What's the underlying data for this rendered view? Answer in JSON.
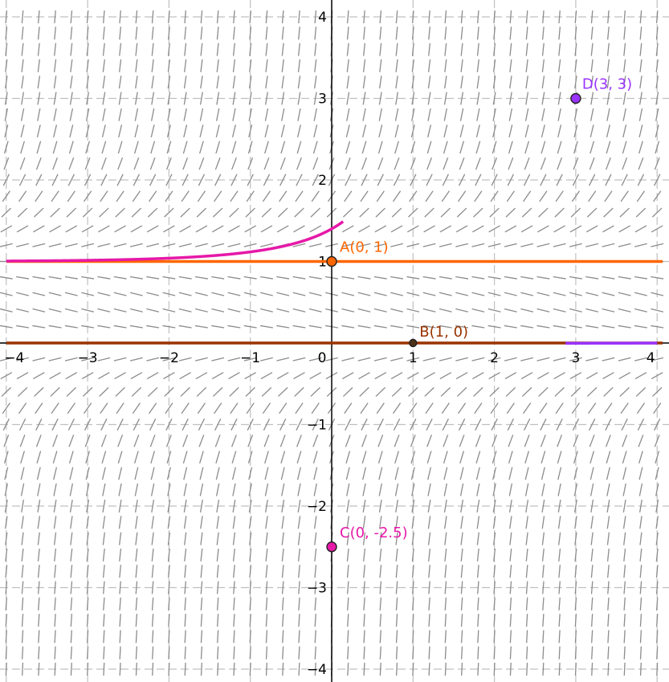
{
  "chart_data": {
    "type": "slope-field",
    "xlim": [
      -4,
      4
    ],
    "ylim": [
      -4.1,
      4.1
    ],
    "grid": true,
    "x_ticks": [
      {
        "value": -4,
        "label": "−4"
      },
      {
        "value": -3,
        "label": "−3"
      },
      {
        "value": -2,
        "label": "−2"
      },
      {
        "value": -1,
        "label": "−1"
      },
      {
        "value": 0,
        "label": "0"
      },
      {
        "value": 1,
        "label": "1"
      },
      {
        "value": 2,
        "label": "2"
      },
      {
        "value": 3,
        "label": "3"
      },
      {
        "value": 4,
        "label": "4"
      }
    ],
    "y_ticks": [
      {
        "value": 4,
        "label": "4"
      },
      {
        "value": 3,
        "label": "3"
      },
      {
        "value": 2,
        "label": "2"
      },
      {
        "value": 1,
        "label": "1"
      },
      {
        "value": -1,
        "label": "−1"
      },
      {
        "value": -2,
        "label": "−2"
      },
      {
        "value": -3,
        "label": "−3"
      },
      {
        "value": -4,
        "label": "−4"
      }
    ],
    "slope_field": {
      "equation": "dy/dx = y(y-1)",
      "x_step": 0.2,
      "y_step": 0.2,
      "color": "#8c8c8c"
    },
    "solution_curves": [
      {
        "through": "A",
        "kind": "constant",
        "value": 1,
        "color": "#ff6600"
      },
      {
        "through": "B",
        "kind": "constant",
        "value": 0,
        "color": "#993300"
      },
      {
        "through": "C",
        "kind": "logistic",
        "constant": 0.285714,
        "x_range": [
          -4,
          0.14
        ],
        "color": "#e619a8"
      },
      {
        "through": "D",
        "kind": "logistic",
        "constant": 13.4427,
        "x_range": [
          2.875,
          4
        ],
        "color": "#9933ff"
      }
    ],
    "points": [
      {
        "name": "A",
        "label": "A(0, 1)",
        "x": 0,
        "y": 1,
        "color": "#ff6600",
        "label_color": "#ff6600"
      },
      {
        "name": "B",
        "label": "B(1, 0)",
        "x": 1,
        "y": 0,
        "color": "#4d3319",
        "label_color": "#993300"
      },
      {
        "name": "C",
        "label": "C(0, -2.5)",
        "x": 0,
        "y": -2.5,
        "color": "#e619a8",
        "label_color": "#e619a8"
      },
      {
        "name": "D",
        "label": "D(3, 3)",
        "x": 3,
        "y": 3,
        "color": "#9933ff",
        "label_color": "#9933ff"
      }
    ]
  }
}
